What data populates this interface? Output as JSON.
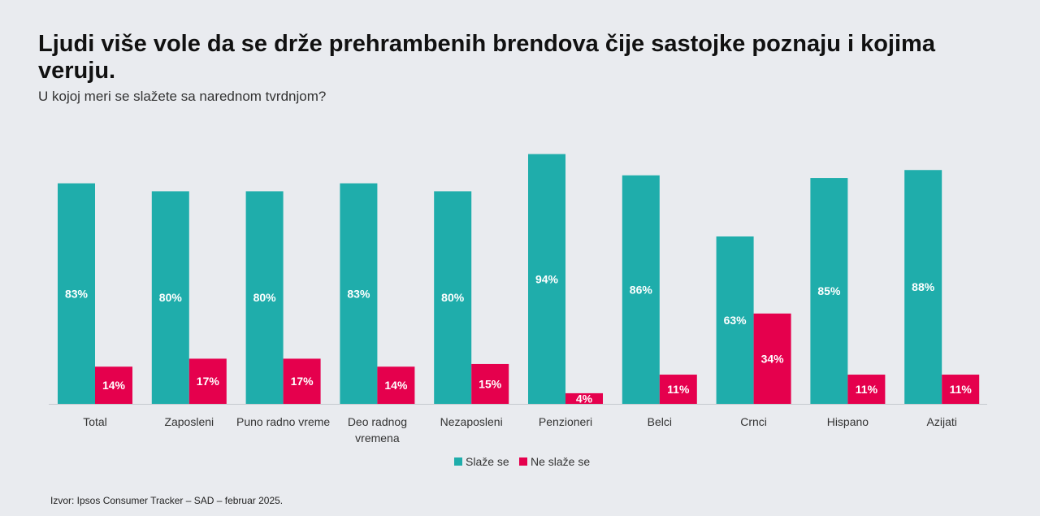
{
  "header": {
    "title": "Ljudi više vole da se drže prehrambenih brendova čije sastojke poznaju i kojima veruju.",
    "subtitle": "U kojoj meri se slažete sa narednom tvrdnjom?"
  },
  "footer": {
    "source": "Izvor: Ipsos Consumer Tracker – SAD – februar 2025."
  },
  "colors": {
    "agree": "#1fadab",
    "disagree": "#e5004d",
    "axis": "#c5c9cf",
    "background": "#e9ebef"
  },
  "chart_data": {
    "type": "bar",
    "title": "Ljudi više vole da se drže prehrambenih brendova čije sastojke poznaju i kojima veruju.",
    "subtitle": "U kojoj meri se slažete sa narednom tvrdnjom?",
    "categories": [
      "Total",
      "Zaposleni",
      "Puno radno vreme",
      "Deo radnog vremena",
      "Nezaposleni",
      "Penzioneri",
      "Belci",
      "Crnci",
      "Hispano",
      "Azijati"
    ],
    "series": [
      {
        "name": "Slaže se",
        "values": [
          83,
          80,
          80,
          83,
          80,
          94,
          86,
          63,
          85,
          88
        ],
        "labels": [
          "83%",
          "80%",
          "80%",
          "83%",
          "80%",
          "94%",
          "86%",
          "63%",
          "85%",
          "88%"
        ]
      },
      {
        "name": "Ne slaže se",
        "values": [
          14,
          17,
          17,
          14,
          15,
          4,
          11,
          34,
          11,
          11
        ],
        "labels": [
          "14%",
          "17%",
          "17%",
          "14%",
          "15%",
          "4%",
          "11%",
          "34%",
          "11%",
          "11%"
        ]
      }
    ],
    "ylim": [
      0,
      100
    ],
    "grid": false,
    "legend": "bottom-center",
    "unit": "%"
  }
}
